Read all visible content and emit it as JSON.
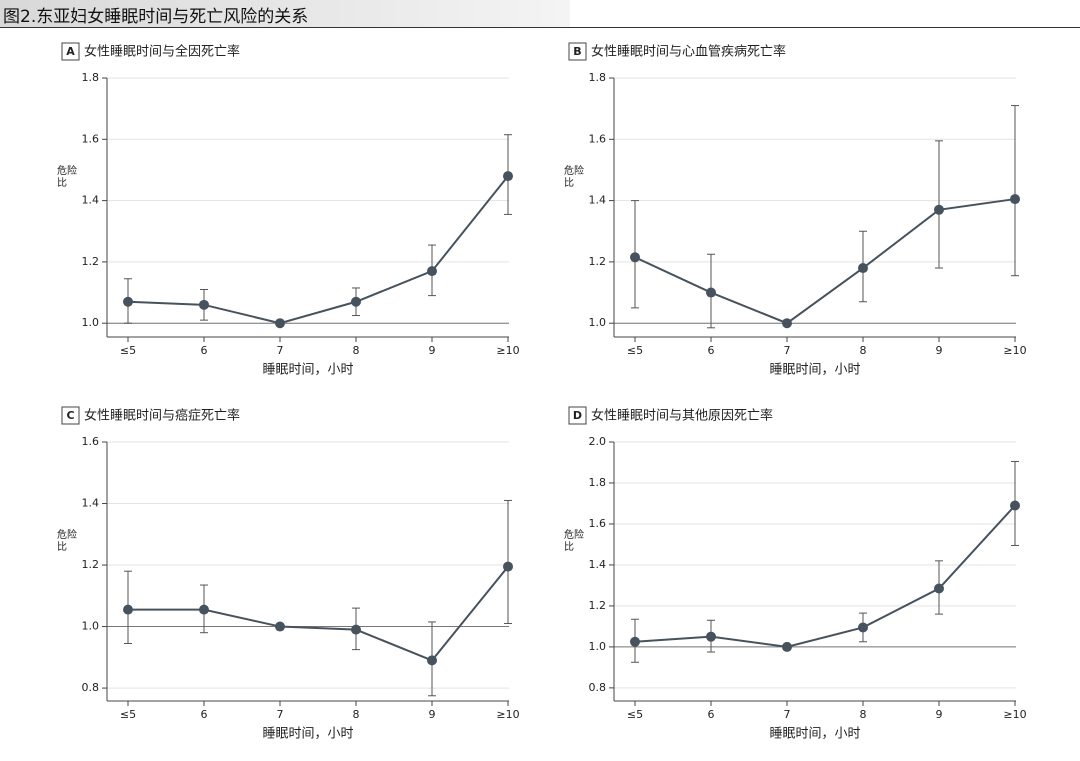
{
  "title": "图2.东亚妇女睡眠时间与死亡风险的关系",
  "chart_data": [
    {
      "type": "line",
      "label": "A",
      "title": "女性睡眠时间与全因死亡率",
      "xlabel": "睡眠时间，小时",
      "ylabel": "危险比",
      "categories": [
        "≤5",
        "6",
        "7",
        "8",
        "9",
        "≥10"
      ],
      "series": [
        {
          "color": "#46535e",
          "values": [
            1.07,
            1.06,
            1.0,
            1.07,
            1.17,
            1.48
          ],
          "ci_low": [
            1.0,
            1.01,
            1.0,
            1.025,
            1.09,
            1.355
          ],
          "ci_high": [
            1.145,
            1.11,
            1.0,
            1.115,
            1.255,
            1.615
          ]
        }
      ],
      "ylim": [
        0.955,
        1.8
      ],
      "yticks": [
        {
          "value": 1.0,
          "label": "1.0"
        },
        1.2,
        1.4,
        1.6,
        1.8
      ],
      "grid": true,
      "refline": 1.0
    },
    {
      "type": "line",
      "label": "B",
      "title": "女性睡眠时间与心血管疾病死亡率",
      "xlabel": "睡眠时间，小时",
      "ylabel": "危险比",
      "categories": [
        "≤5",
        "6",
        "7",
        "8",
        "9",
        "≥10"
      ],
      "series": [
        {
          "color": "#46535e",
          "values": [
            1.215,
            1.1,
            1.0,
            1.18,
            1.37,
            1.405
          ],
          "ci_low": [
            1.05,
            0.985,
            1.0,
            1.07,
            1.18,
            1.155
          ],
          "ci_high": [
            1.4,
            1.225,
            1.0,
            1.3,
            1.595,
            1.71
          ]
        }
      ],
      "ylim": [
        0.955,
        1.8
      ],
      "yticks": [
        {
          "value": 1.0,
          "label": "1.0"
        },
        1.2,
        1.4,
        1.6,
        1.8
      ],
      "grid": true,
      "refline": 1.0
    },
    {
      "type": "line",
      "label": "C",
      "title": "女性睡眠时间与癌症死亡率",
      "xlabel": "睡眠时间，小时",
      "ylabel": "危险比",
      "categories": [
        "≤5",
        "6",
        "7",
        "8",
        "9",
        "≥10"
      ],
      "series": [
        {
          "color": "#46535e",
          "values": [
            1.055,
            1.055,
            1.0,
            0.99,
            0.89,
            1.195
          ],
          "ci_low": [
            0.945,
            0.98,
            1.0,
            0.925,
            0.775,
            1.01
          ],
          "ci_high": [
            1.18,
            1.135,
            1.0,
            1.06,
            1.015,
            1.41
          ]
        }
      ],
      "ylim": [
        0.758,
        1.6
      ],
      "yticks": [
        0.8,
        {
          "value": 1.0,
          "label": "1.0"
        },
        1.2,
        1.4,
        1.6
      ],
      "grid": true,
      "refline": 1.0
    },
    {
      "type": "line",
      "label": "D",
      "title": "女性睡眠时间与其他原因死亡率",
      "xlabel": "睡眠时间，小时",
      "ylabel": "危险比",
      "categories": [
        "≤5",
        "6",
        "7",
        "8",
        "9",
        "≥10"
      ],
      "series": [
        {
          "color": "#46535e",
          "values": [
            1.025,
            1.05,
            1.0,
            1.095,
            1.285,
            1.69
          ],
          "ci_low": [
            0.925,
            0.975,
            1.0,
            1.025,
            1.16,
            1.495
          ],
          "ci_high": [
            1.135,
            1.13,
            1.0,
            1.165,
            1.42,
            1.905
          ]
        }
      ],
      "ylim": [
        0.736,
        2.0
      ],
      "yticks": [
        0.8,
        {
          "value": 1.0,
          "label": "1.0"
        },
        1.2,
        1.4,
        1.6,
        1.8,
        {
          "value": 2.0,
          "label": "2.0"
        }
      ],
      "grid": true,
      "refline": 1.0
    }
  ]
}
